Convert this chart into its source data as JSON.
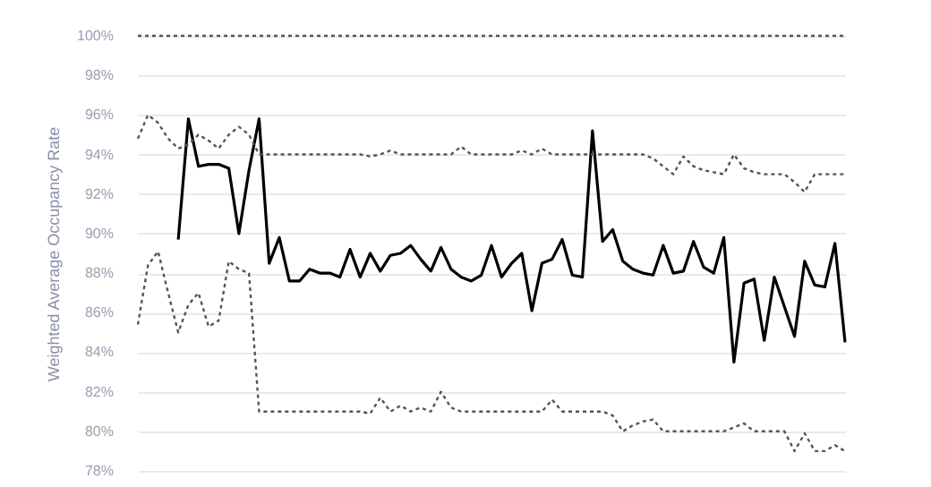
{
  "chart_data": {
    "type": "line",
    "ylabel": "Weighted Average Occupancy Rate",
    "categories": [
      null,
      null,
      null,
      null,
      null,
      null,
      null,
      null,
      null,
      null,
      null,
      null,
      null,
      null,
      null,
      null,
      null,
      null,
      null,
      null,
      null,
      null,
      null,
      null,
      null,
      null,
      null,
      null,
      null,
      null,
      null,
      null,
      null,
      null,
      null,
      null,
      null,
      null,
      null,
      null,
      null,
      null,
      null,
      null,
      null,
      null,
      null,
      null,
      null,
      null,
      null,
      null,
      null,
      null,
      null,
      null,
      null,
      null,
      null,
      null,
      null,
      null,
      null,
      null,
      null,
      null,
      null,
      null,
      null,
      null,
      null
    ],
    "series": [
      {
        "color": "#000000",
        "line_style": "solid",
        "values": [
          null,
          null,
          null,
          null,
          89.7,
          95.8,
          93.4,
          93.5,
          93.5,
          93.3,
          90.0,
          93.2,
          95.8,
          88.5,
          89.8,
          87.6,
          87.6,
          88.2,
          88.0,
          88.0,
          87.8,
          89.2,
          87.8,
          89.0,
          88.1,
          88.9,
          89.0,
          89.4,
          88.7,
          88.1,
          89.3,
          88.2,
          87.8,
          87.6,
          87.9,
          89.4,
          87.8,
          88.5,
          89.0,
          86.1,
          88.5,
          88.7,
          89.7,
          87.9,
          87.8,
          95.2,
          89.6,
          90.2,
          88.6,
          88.2,
          88.0,
          87.9,
          89.4,
          88.0,
          88.1,
          89.6,
          88.3,
          88.0,
          89.8,
          83.5,
          87.5,
          87.7,
          84.6,
          87.8,
          86.3,
          84.8,
          88.6,
          87.4,
          87.3,
          89.5,
          84.5
        ]
      },
      {
        "color": "#555555",
        "line_style": "dotted",
        "values": [
          94.8,
          96.0,
          95.6,
          94.8,
          94.3,
          94.5,
          95.0,
          94.7,
          94.3,
          95.0,
          95.4,
          95.0,
          94.0,
          94.0,
          94.0,
          94.0,
          94.0,
          94.0,
          94.0,
          94.0,
          94.0,
          94.0,
          94.0,
          93.9,
          94.0,
          94.2,
          94.0,
          94.0,
          94.0,
          94.0,
          94.0,
          94.0,
          94.4,
          94.0,
          94.0,
          94.0,
          94.0,
          94.0,
          94.2,
          94.0,
          94.3,
          94.0,
          94.0,
          94.0,
          94.0,
          94.0,
          94.0,
          94.0,
          94.0,
          94.0,
          94.0,
          93.8,
          93.4,
          93.0,
          93.9,
          93.4,
          93.2,
          93.1,
          93.0,
          94.0,
          93.3,
          93.1,
          93.0,
          93.0,
          93.0,
          92.6,
          92.1,
          93.0,
          93.0,
          93.0,
          93.0
        ]
      },
      {
        "color": "#555555",
        "line_style": "dotted",
        "values": [
          85.4,
          88.4,
          89.1,
          87.0,
          85.0,
          86.4,
          87.0,
          85.3,
          85.6,
          88.6,
          88.2,
          88.0,
          81.0,
          81.0,
          81.0,
          81.0,
          81.0,
          81.0,
          81.0,
          81.0,
          81.0,
          81.0,
          81.0,
          80.9,
          81.7,
          81.0,
          81.3,
          81.0,
          81.2,
          81.0,
          82.0,
          81.2,
          81.0,
          81.0,
          81.0,
          81.0,
          81.0,
          81.0,
          81.0,
          81.0,
          81.0,
          81.6,
          81.0,
          81.0,
          81.0,
          81.0,
          81.0,
          80.8,
          80.0,
          80.3,
          80.5,
          80.6,
          80.0,
          80.0,
          80.0,
          80.0,
          80.0,
          80.0,
          80.0,
          80.2,
          80.4,
          80.0,
          80.0,
          80.0,
          80.0,
          79.0,
          79.9,
          79.0,
          79.0,
          79.3,
          79.0
        ]
      }
    ],
    "ylim": [
      78,
      100
    ],
    "yticks": [
      {
        "value": 78,
        "label": "78%"
      },
      {
        "value": 80,
        "label": "80%"
      },
      {
        "value": 82,
        "label": "82%"
      },
      {
        "value": 84,
        "label": "84%"
      },
      {
        "value": 86,
        "label": "86%"
      },
      {
        "value": 88,
        "label": "88%"
      },
      {
        "value": 90,
        "label": "90%"
      },
      {
        "value": 92,
        "label": "92%"
      },
      {
        "value": 94,
        "label": "94%"
      },
      {
        "value": 96,
        "label": "96%"
      },
      {
        "value": 98,
        "label": "98%"
      },
      {
        "value": 100,
        "label": "100%"
      }
    ],
    "ref_lines": [
      {
        "axis": "y",
        "value": 100,
        "color": "#555555",
        "line_style": "dotted"
      }
    ],
    "grid": "y",
    "tick_labels": "y"
  }
}
